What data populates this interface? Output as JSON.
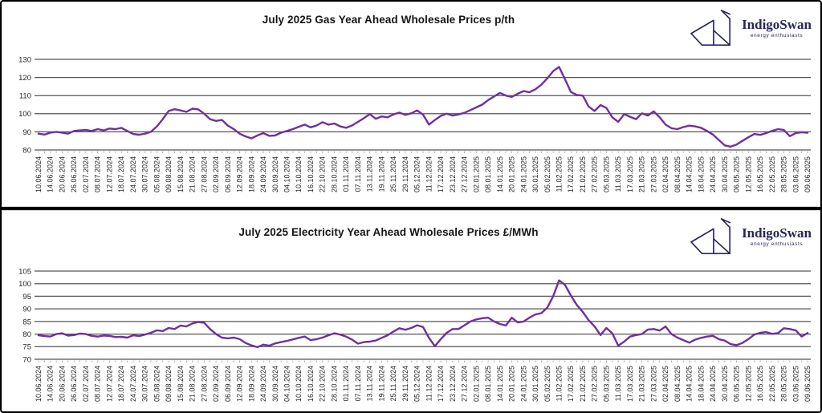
{
  "brand": {
    "name": "IndigoSwan",
    "tagline": "energy enthusiasts"
  },
  "colors": {
    "line": "#7030a0",
    "grid": "#555555",
    "axis_tick": "#9a9a9a",
    "tick_label": "#262626",
    "title": "#151515",
    "brand_navy": "#26265c"
  },
  "chart_data": [
    {
      "type": "line",
      "title": "July 2025 Gas Year Ahead Wholesale Prices p/th",
      "unit": "p/th",
      "ylim": [
        80,
        130
      ],
      "ytick_step": 10,
      "grid": true,
      "legend": "none",
      "x_label_rotation": -90,
      "x_labels": [
        "10.06.2024",
        "14.06.2024",
        "20.06.2024",
        "26.06.2024",
        "02.07.2024",
        "08.07.2024",
        "12.07.2024",
        "18.07.2024",
        "24.07.2024",
        "30.07.2024",
        "05.08.2024",
        "09.08.2024",
        "15.08.2024",
        "21.08.2024",
        "27.08.2024",
        "02.09.2024",
        "06.09.2024",
        "12.09.2024",
        "18.09.2024",
        "24.09.2024",
        "30.09.2024",
        "04.10.2024",
        "10.10.2024",
        "16.10.2024",
        "22.10.2024",
        "28.10.2024",
        "01.11.2024",
        "07.11.2024",
        "13.11.2024",
        "19.11.2024",
        "25.11.2024",
        "29.11.2024",
        "05.12.2024",
        "11.12.2024",
        "17.12.2024",
        "23.12.2024",
        "27.12.2024",
        "02.01.2025",
        "08.01.2025",
        "14.01.2025",
        "20.01.2025",
        "24.01.2025",
        "30.01.2025",
        "05.02.2025",
        "11.02.2025",
        "17.02.2025",
        "21.02.2025",
        "27.02.2025",
        "05.03.2025",
        "11.03.2025",
        "17.03.2025",
        "21.03.2025",
        "27.03.2025",
        "02.04.2025",
        "08.04.2025",
        "14.04.2025",
        "18.04.2025",
        "24.04.2025",
        "30.04.2025",
        "06.05.2025",
        "12.05.2025",
        "16.05.2025",
        "22.05.2025",
        "28.05.2025",
        "03.06.2025",
        "09.06.2025"
      ],
      "points_per_label": 2,
      "series": [
        {
          "values": [
            89.0,
            88.5,
            89.5,
            90.0,
            89.5,
            89.0,
            90.5,
            90.8,
            91.0,
            90.5,
            91.5,
            90.8,
            91.8,
            91.5,
            92.2,
            90.5,
            88.8,
            88.4,
            89.0,
            90.0,
            93.0,
            97.0,
            101.5,
            102.5,
            101.8,
            101.0,
            102.8,
            102.4,
            100.0,
            97.0,
            96.0,
            96.6,
            93.5,
            91.5,
            89.0,
            87.5,
            86.4,
            88.0,
            89.3,
            87.8,
            88.0,
            89.5,
            90.5,
            91.5,
            92.8,
            94.0,
            92.5,
            93.5,
            95.3,
            94.0,
            94.6,
            93.0,
            92.2,
            93.5,
            95.5,
            97.5,
            99.8,
            97.2,
            98.5,
            98.0,
            99.6,
            100.6,
            99.4,
            100.2,
            101.8,
            99.5,
            94.0,
            96.5,
            98.8,
            100.0,
            99.0,
            99.6,
            100.5,
            102.0,
            103.5,
            105.0,
            107.5,
            109.5,
            111.5,
            110.0,
            109.3,
            111.0,
            112.5,
            111.8,
            113.5,
            116.0,
            119.5,
            123.5,
            125.8,
            119.0,
            112.0,
            110.3,
            110.0,
            104.0,
            101.5,
            104.8,
            103.2,
            98.0,
            95.5,
            99.8,
            98.3,
            97.0,
            100.2,
            99.0,
            101.3,
            98.0,
            94.0,
            92.0,
            91.5,
            92.6,
            93.4,
            93.0,
            92.2,
            90.5,
            88.5,
            85.5,
            82.5,
            81.8,
            83.0,
            85.0,
            87.0,
            88.8,
            88.3,
            89.3,
            90.5,
            91.5,
            91.0,
            87.6,
            89.3,
            89.8,
            89.5
          ]
        }
      ]
    },
    {
      "type": "line",
      "title": "July 2025 Electricity Year Ahead Wholesale Prices £/MWh",
      "unit": "£/MWh",
      "ylim": [
        70,
        105
      ],
      "ytick_step": 5,
      "grid": true,
      "legend": "none",
      "x_label_rotation": -90,
      "x_labels": [
        "10.06.2024",
        "14.06.2024",
        "20.06.2024",
        "26.06.2024",
        "02.07.2024",
        "08.07.2024",
        "12.07.2024",
        "18.07.2024",
        "24.07.2024",
        "30.07.2024",
        "05.08.2024",
        "09.08.2024",
        "15.08.2024",
        "21.08.2024",
        "27.08.2024",
        "02.09.2024",
        "06.09.2024",
        "12.09.2024",
        "18.09.2024",
        "24.09.2024",
        "30.09.2024",
        "04.10.2024",
        "10.10.2024",
        "16.10.2024",
        "22.10.2024",
        "28.10.2024",
        "01.11.2024",
        "07.11.2024",
        "13.11.2024",
        "19.11.2024",
        "25.11.2024",
        "29.11.2024",
        "05.12.2024",
        "11.12.2024",
        "17.12.2024",
        "23.12.2024",
        "27.12.2024",
        "02.01.2025",
        "08.01.2025",
        "14.01.2025",
        "20.01.2025",
        "24.01.2025",
        "30.01.2025",
        "05.02.2025",
        "11.02.2025",
        "17.02.2025",
        "21.02.2025",
        "27.02.2025",
        "05.03.2025",
        "11.03.2025",
        "17.03.2025",
        "21.03.2025",
        "27.03.2025",
        "02.04.2025",
        "08.04.2025",
        "14.04.2025",
        "18.04.2025",
        "24.04.2025",
        "30.04.2025",
        "06.05.2025",
        "12.05.2025",
        "16.05.2025",
        "22.05.2025",
        "28.05.2025",
        "03.06.2025",
        "09.06.2025"
      ],
      "points_per_label": 2,
      "series": [
        {
          "values": [
            79.5,
            79.2,
            79.0,
            80.0,
            80.3,
            79.4,
            79.6,
            80.2,
            80.0,
            79.3,
            79.0,
            79.4,
            79.3,
            78.8,
            78.9,
            78.6,
            79.5,
            79.2,
            79.8,
            80.5,
            81.5,
            81.2,
            82.4,
            82.0,
            83.4,
            83.0,
            84.2,
            84.8,
            84.5,
            82.0,
            80.0,
            78.6,
            78.3,
            78.6,
            78.0,
            76.5,
            75.5,
            74.8,
            75.8,
            75.4,
            76.3,
            76.8,
            77.3,
            77.9,
            78.5,
            79.0,
            77.6,
            78.0,
            78.6,
            79.5,
            80.3,
            79.8,
            79.0,
            77.8,
            76.2,
            76.8,
            77.0,
            77.4,
            78.5,
            79.5,
            81.0,
            82.3,
            81.7,
            82.4,
            83.5,
            82.8,
            78.5,
            75.2,
            78.0,
            80.5,
            82.0,
            82.0,
            83.5,
            85.0,
            85.8,
            86.3,
            86.5,
            85.0,
            84.0,
            83.4,
            86.5,
            84.6,
            85.0,
            86.5,
            87.8,
            88.3,
            90.5,
            95.0,
            101.3,
            99.5,
            95.3,
            91.5,
            88.8,
            85.5,
            83.0,
            79.6,
            82.4,
            80.3,
            75.4,
            77.0,
            79.0,
            79.6,
            80.0,
            81.8,
            82.0,
            81.4,
            83.0,
            80.0,
            78.6,
            77.6,
            76.6,
            77.8,
            78.5,
            79.0,
            79.3,
            78.0,
            77.4,
            76.0,
            75.6,
            76.5,
            78.0,
            79.8,
            80.5,
            80.8,
            80.1,
            80.4,
            82.3,
            82.0,
            81.5,
            79.0,
            80.4
          ]
        }
      ]
    }
  ]
}
